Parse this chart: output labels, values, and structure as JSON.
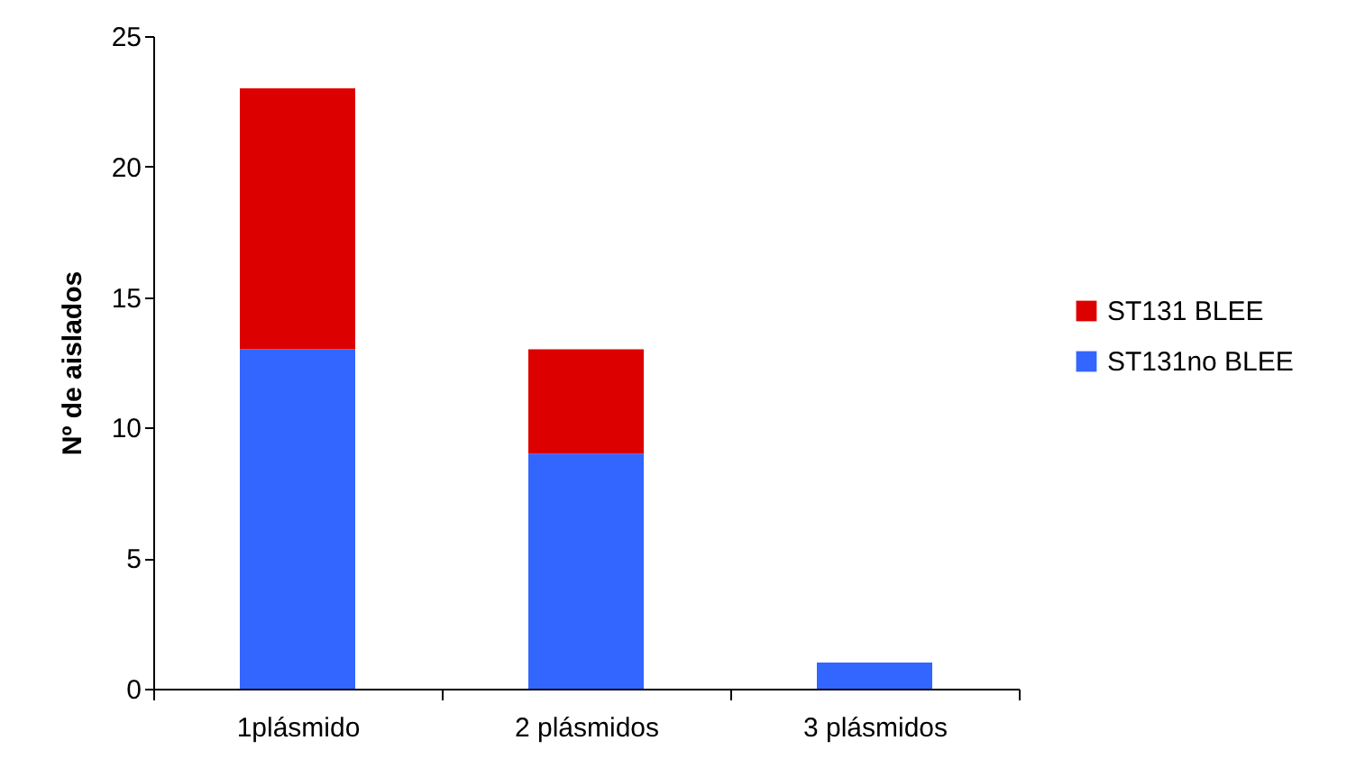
{
  "chart_data": {
    "type": "bar",
    "stacked": true,
    "ylabel": "Nº de aislados",
    "categories": [
      "1plásmido",
      "2 plásmidos",
      "3 plásmidos"
    ],
    "series": [
      {
        "name": "ST131no BLEE",
        "color": "#3366ff",
        "values": [
          13,
          9,
          1
        ]
      },
      {
        "name": "ST131 BLEE",
        "color": "#dd0000",
        "values": [
          10,
          4,
          null
        ]
      }
    ],
    "ylim": [
      0,
      25
    ],
    "yticks": [
      0,
      5,
      10,
      15,
      20,
      25
    ],
    "grid": false,
    "legend": "right"
  }
}
